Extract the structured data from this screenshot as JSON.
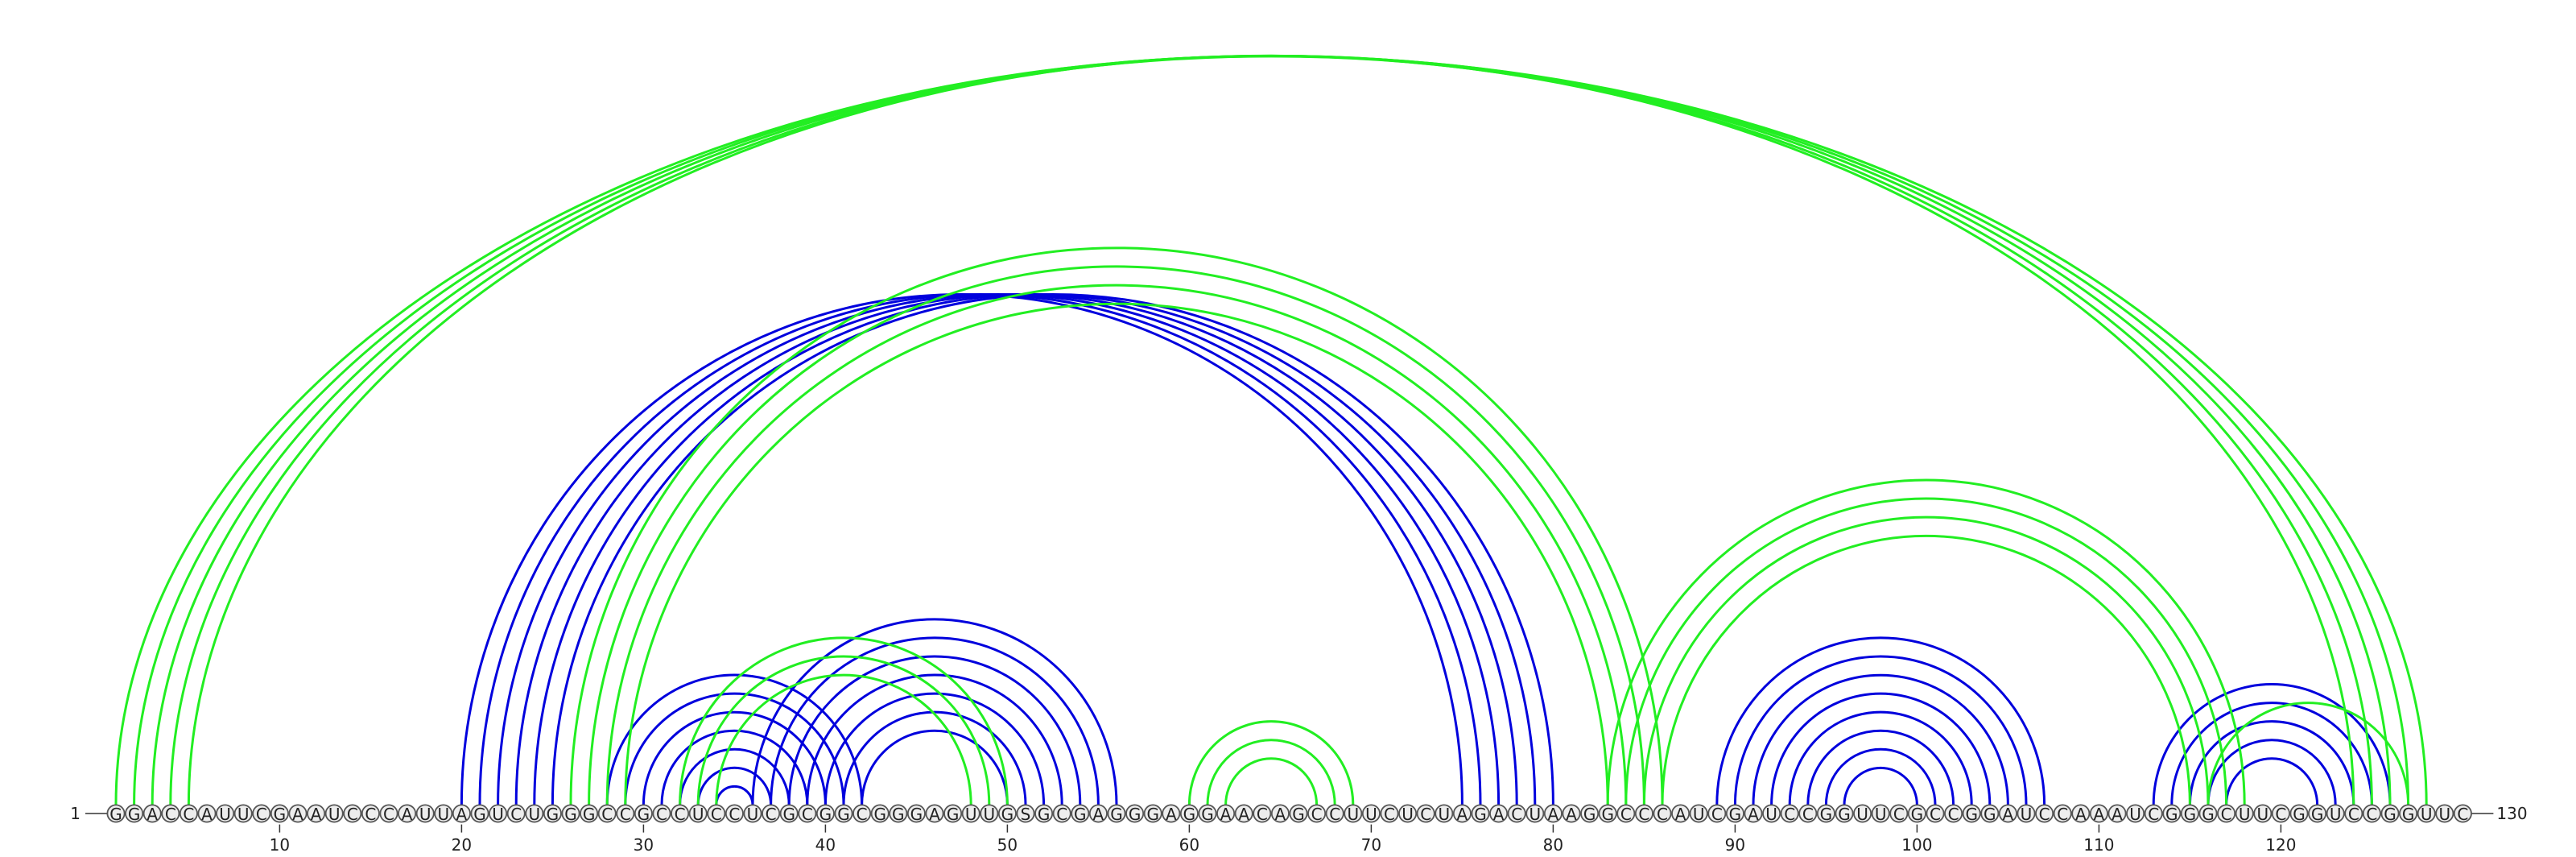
{
  "sequence": {
    "bases": "GGACCAUUCGAAUCCCAUUAGUCUGGGCCGCCUCCUCGCGGCGGGAGUUGSGCGAGGGAGGAACAGCCUUCUCUAGACUAAGGCCCAUCGAUCCGGUUCGCCGGAUCCAAAUCGGGCUUCGGUCCGGUUC",
    "start_label": "1",
    "end_label": "130",
    "tick_labels": [
      "10",
      "20",
      "30",
      "40",
      "50",
      "60",
      "70",
      "80",
      "90",
      "100",
      "110",
      "120"
    ]
  },
  "colors": {
    "arc_set_a": "#0000dd",
    "arc_set_b": "#22ee22",
    "nucleotide_fill": "#ededed",
    "nucleotide_stroke": "#555555"
  },
  "arc_sets": [
    {
      "id": "set-a",
      "color": "#0000dd",
      "pairs": [
        [
          20,
          75
        ],
        [
          21,
          76
        ],
        [
          22,
          77
        ],
        [
          23,
          78
        ],
        [
          24,
          79
        ],
        [
          25,
          80
        ],
        [
          28,
          42
        ],
        [
          29,
          41
        ],
        [
          30,
          40
        ],
        [
          31,
          39
        ],
        [
          32,
          38
        ],
        [
          33,
          37
        ],
        [
          34,
          36
        ],
        [
          36,
          56
        ],
        [
          37,
          55
        ],
        [
          38,
          54
        ],
        [
          39,
          53
        ],
        [
          40,
          52
        ],
        [
          41,
          51
        ],
        [
          42,
          50
        ],
        [
          89,
          107
        ],
        [
          90,
          106
        ],
        [
          91,
          105
        ],
        [
          92,
          104
        ],
        [
          93,
          103
        ],
        [
          94,
          102
        ],
        [
          95,
          101
        ],
        [
          96,
          100
        ],
        [
          113,
          126
        ],
        [
          114,
          125
        ],
        [
          115,
          124
        ],
        [
          116,
          123
        ],
        [
          117,
          122
        ]
      ]
    },
    {
      "id": "set-b",
      "color": "#22ee22",
      "pairs": [
        [
          1,
          128
        ],
        [
          2,
          127
        ],
        [
          3,
          126
        ],
        [
          4,
          125
        ],
        [
          5,
          124
        ],
        [
          26,
          86
        ],
        [
          27,
          85
        ],
        [
          28,
          84
        ],
        [
          29,
          83
        ],
        [
          32,
          50
        ],
        [
          33,
          49
        ],
        [
          34,
          48
        ],
        [
          60,
          69
        ],
        [
          61,
          68
        ],
        [
          62,
          67
        ],
        [
          83,
          118
        ],
        [
          84,
          117
        ],
        [
          85,
          116
        ],
        [
          86,
          115
        ],
        [
          116,
          127
        ]
      ]
    }
  ]
}
